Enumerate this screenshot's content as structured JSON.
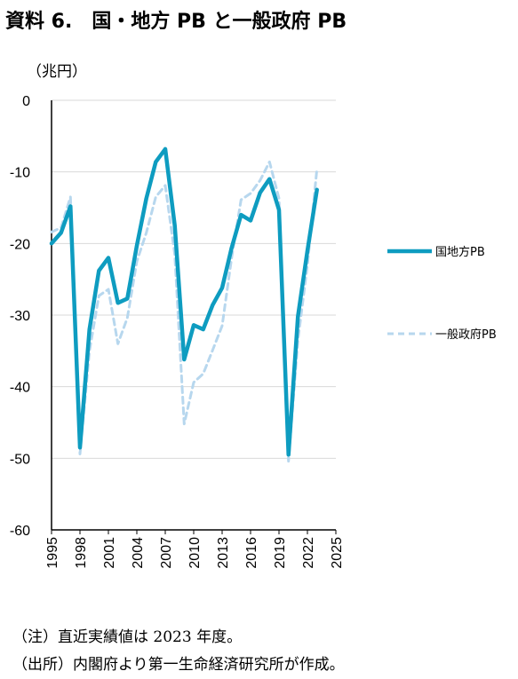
{
  "title": "資料 6.　国・地方 PB と一般政府 PB",
  "unit_label": "（兆円）",
  "notes": [
    "（注）直近実績値は 2023 年度。",
    "（出所）内閣府より第一生命経済研究所が作成。"
  ],
  "colors": {
    "national_local": "#0e9cc0",
    "general_government": "#b7d7ee",
    "grid": "#d9d9d9",
    "axis": "#000000"
  },
  "chart_data": {
    "type": "line",
    "title": "",
    "xlabel": "",
    "ylabel": "（兆円）",
    "ylim": [
      -60,
      0
    ],
    "yticks": [
      0,
      -10,
      -20,
      -30,
      -40,
      -50,
      -60
    ],
    "xlim": [
      1995,
      2025
    ],
    "xticks": [
      "1995",
      "1998",
      "2001",
      "2004",
      "2007",
      "2010",
      "2013",
      "2016",
      "2019",
      "2022",
      "2025"
    ],
    "grid": true,
    "legend_position": "right",
    "x": [
      1995,
      1996,
      1997,
      1998,
      1999,
      2000,
      2001,
      2002,
      2003,
      2004,
      2005,
      2006,
      2007,
      2008,
      2009,
      2010,
      2011,
      2012,
      2013,
      2014,
      2015,
      2016,
      2017,
      2018,
      2019,
      2020,
      2021,
      2022,
      2023
    ],
    "series": [
      {
        "name": "国地方PB",
        "style": "solid",
        "values": [
          -20.0,
          -18.5,
          -14.8,
          -48.5,
          -32.0,
          -23.8,
          -22.0,
          -28.3,
          -27.7,
          -20.3,
          -13.7,
          -8.6,
          -6.8,
          -17.5,
          -36.2,
          -31.4,
          -32.0,
          -28.6,
          -26.2,
          -20.6,
          -16.0,
          -16.8,
          -12.9,
          -11.0,
          -15.3,
          -49.5,
          -30.2,
          -21.0,
          -12.5
        ]
      },
      {
        "name": "一般政府PB",
        "style": "dashed",
        "values": [
          -18.4,
          -17.8,
          -13.5,
          -49.4,
          -35.0,
          -27.3,
          -26.4,
          -34.0,
          -30.4,
          -22.5,
          -18.5,
          -13.5,
          -11.9,
          -21.5,
          -45.2,
          -39.4,
          -38.2,
          -34.9,
          -31.5,
          -22.0,
          -13.9,
          -13.0,
          -11.2,
          -8.6,
          -13.7,
          -50.4,
          -33.5,
          -23.0,
          -9.6
        ]
      }
    ]
  }
}
